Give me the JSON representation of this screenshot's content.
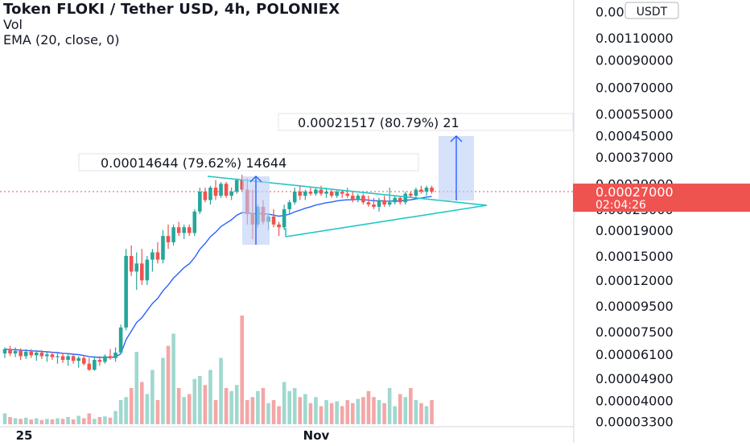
{
  "header": {
    "title": "Token FLOKI / Tether USD, 4h, POLONIEX",
    "indicator_vol": "Vol",
    "indicator_ema": "EMA (20, close, 0)"
  },
  "price_axis": {
    "currency": "USDT",
    "ticks": [
      "0.00170000",
      "0.00140000",
      "0.00110000",
      "0.00090000",
      "0.00070000",
      "0.00055000",
      "0.00045000",
      "0.00037000",
      "0.00029000",
      "0.00023000",
      "0.00019000",
      "0.00015000",
      "0.00012000",
      "0.00009500",
      "0.00007500",
      "0.00006100",
      "0.00004900",
      "0.00004000",
      "0.00003300"
    ],
    "last_price": "0.00027000",
    "countdown": "02:04:26"
  },
  "time_axis": {
    "labels": [
      "25",
      "Nov"
    ]
  },
  "annotations": {
    "measure_left": "0.00014644 (79.62%) 14644",
    "measure_right": "0.00021517 (80.79%) 21"
  },
  "colors": {
    "up": "#26a69a",
    "down": "#ef5350",
    "vol_up": "#9fd8cf",
    "vol_down": "#f4a6a6",
    "ema": "#2962ff",
    "pattern": "#1fc7c7",
    "measure_fill": "#bbcdf7",
    "measure_line": "#2962ff",
    "last_price_bg": "#ef5350"
  },
  "chart_data": {
    "type": "candlestick",
    "title": "Token FLOKI / Tether USD, 4h, POLONIEX",
    "y_scale": "log",
    "ylim": [
      3.15e-05,
      0.0017
    ],
    "candles": [
      [
        6.15e-05,
        6.5e-05,
        5.9e-05,
        6.4e-05
      ],
      [
        6.4e-05,
        6.6e-05,
        6e-05,
        6.15e-05
      ],
      [
        6.15e-05,
        6.5e-05,
        5.95e-05,
        6.3e-05
      ],
      [
        6.3e-05,
        6.45e-05,
        5.8e-05,
        6e-05
      ],
      [
        6e-05,
        6.4e-05,
        5.85e-05,
        6.25e-05
      ],
      [
        6.25e-05,
        6.4e-05,
        5.9e-05,
        6.05e-05
      ],
      [
        6.05e-05,
        6.3e-05,
        5.75e-05,
        6.2e-05
      ],
      [
        6.2e-05,
        6.35e-05,
        5.85e-05,
        6e-05
      ],
      [
        6e-05,
        6.25e-05,
        5.7e-05,
        6.1e-05
      ],
      [
        6.1e-05,
        6.25e-05,
        5.8e-05,
        5.95e-05
      ],
      [
        5.95e-05,
        6.2e-05,
        5.6e-05,
        6e-05
      ],
      [
        6e-05,
        6.2e-05,
        5.65e-05,
        5.8e-05
      ],
      [
        5.8e-05,
        6.1e-05,
        5.5e-05,
        6e-05
      ],
      [
        6e-05,
        6.15e-05,
        5.6e-05,
        5.75e-05
      ],
      [
        5.75e-05,
        6e-05,
        5.4e-05,
        5.9e-05
      ],
      [
        5.9e-05,
        6.05e-05,
        5.5e-05,
        5.6e-05
      ],
      [
        5.6e-05,
        5.9e-05,
        5.25e-05,
        5.3e-05
      ],
      [
        5.3e-05,
        6e-05,
        5.25e-05,
        5.8e-05
      ],
      [
        5.8e-05,
        6e-05,
        5.5e-05,
        5.7e-05
      ],
      [
        5.7e-05,
        6.1e-05,
        5.6e-05,
        6e-05
      ],
      [
        6e-05,
        6.4e-05,
        5.8e-05,
        5.9e-05
      ],
      [
        5.9e-05,
        6.5e-05,
        5.7e-05,
        6.2e-05
      ],
      [
        6.2e-05,
        8e-05,
        6.1e-05,
        7.8e-05
      ],
      [
        7.8e-05,
        0.00016,
        7.6e-05,
        0.00015
      ],
      [
        0.00015,
        0.000165,
        0.000125,
        0.00013
      ],
      [
        0.00013,
        0.000155,
        0.00011,
        0.00014
      ],
      [
        0.00014,
        0.00016,
        0.000115,
        0.00012
      ],
      [
        0.00012,
        0.00015,
        0.000115,
        0.000145
      ],
      [
        0.000145,
        0.00016,
        0.00013,
        0.000155
      ],
      [
        0.000155,
        0.00017,
        0.00014,
        0.000145
      ],
      [
        0.000145,
        0.00019,
        0.00014,
        0.00018
      ],
      [
        0.00018,
        0.0002,
        0.00016,
        0.00017
      ],
      [
        0.00017,
        0.0002,
        0.000165,
        0.000195
      ],
      [
        0.000195,
        0.000205,
        0.00018,
        0.000185
      ],
      [
        0.000185,
        0.0002,
        0.000175,
        0.000195
      ],
      [
        0.000195,
        0.0002,
        0.00018,
        0.000185
      ],
      [
        0.000185,
        0.00023,
        0.00018,
        0.000225
      ],
      [
        0.000225,
        0.00028,
        0.00022,
        0.00027
      ],
      [
        0.00027,
        0.00028,
        0.000245,
        0.00025
      ],
      [
        0.00025,
        0.000285,
        0.00024,
        0.00028
      ],
      [
        0.00028,
        0.0003,
        0.00025,
        0.00026
      ],
      [
        0.00026,
        0.000295,
        0.000255,
        0.00029
      ],
      [
        0.00029,
        0.000295,
        0.000255,
        0.00026
      ],
      [
        0.00026,
        0.00028,
        0.00025,
        0.00027
      ],
      [
        0.00027,
        0.000305,
        0.000265,
        0.0003
      ],
      [
        0.0003,
        0.000315,
        0.00027,
        0.000275
      ],
      [
        0.000275,
        0.000305,
        0.0002,
        0.00022
      ],
      [
        0.00022,
        0.000275,
        0.000175,
        0.0002
      ],
      [
        0.0002,
        0.00024,
        0.000195,
        0.000235
      ],
      [
        0.000235,
        0.00025,
        0.0002,
        0.000205
      ],
      [
        0.000205,
        0.00022,
        0.00019,
        0.000215
      ],
      [
        0.000215,
        0.00023,
        0.000195,
        0.0002
      ],
      [
        0.0002,
        0.000205,
        0.00018,
        0.000195
      ],
      [
        0.000195,
        0.00024,
        0.00019,
        0.00023
      ],
      [
        0.00023,
        0.00025,
        0.00022,
        0.000245
      ],
      [
        0.000245,
        0.00028,
        0.00024,
        0.00027
      ],
      [
        0.00027,
        0.000285,
        0.00025,
        0.00026
      ],
      [
        0.00026,
        0.000275,
        0.00025,
        0.00027
      ],
      [
        0.00027,
        0.00028,
        0.00026,
        0.000265
      ],
      [
        0.000265,
        0.00028,
        0.00026,
        0.000275
      ],
      [
        0.000275,
        0.000285,
        0.00026,
        0.000265
      ],
      [
        0.000265,
        0.00028,
        0.000255,
        0.00027
      ],
      [
        0.00027,
        0.000275,
        0.000255,
        0.00026
      ],
      [
        0.00026,
        0.000275,
        0.000255,
        0.00027
      ],
      [
        0.00027,
        0.000275,
        0.000255,
        0.000265
      ],
      [
        0.000265,
        0.00028,
        0.000255,
        0.00026
      ],
      [
        0.00026,
        0.00027,
        0.000245,
        0.00025
      ],
      [
        0.00025,
        0.000265,
        0.000245,
        0.00026
      ],
      [
        0.00026,
        0.000265,
        0.00024,
        0.000245
      ],
      [
        0.000245,
        0.00026,
        0.000235,
        0.00024
      ],
      [
        0.00024,
        0.000255,
        0.00023,
        0.000235
      ],
      [
        0.000235,
        0.000255,
        0.000225,
        0.00025
      ],
      [
        0.00025,
        0.00026,
        0.000235,
        0.00024
      ],
      [
        0.00024,
        0.00028,
        0.000235,
        0.000245
      ],
      [
        0.000245,
        0.00026,
        0.00024,
        0.000255
      ],
      [
        0.000255,
        0.00026,
        0.00024,
        0.000245
      ],
      [
        0.000245,
        0.00027,
        0.00024,
        0.000265
      ],
      [
        0.000265,
        0.00027,
        0.000255,
        0.00026
      ],
      [
        0.00026,
        0.00028,
        0.000255,
        0.000275
      ],
      [
        0.000275,
        0.000285,
        0.000265,
        0.00027
      ],
      [
        0.00027,
        0.000285,
        0.00026,
        0.00028
      ],
      [
        0.00028,
        0.000285,
        0.000265,
        0.00027
      ]
    ],
    "volume": [
      18,
      12,
      10,
      9,
      11,
      8,
      10,
      7,
      9,
      8,
      10,
      9,
      12,
      8,
      14,
      10,
      18,
      9,
      12,
      13,
      11,
      22,
      40,
      45,
      60,
      120,
      70,
      50,
      90,
      40,
      110,
      130,
      150,
      60,
      45,
      50,
      75,
      80,
      65,
      90,
      40,
      110,
      60,
      55,
      65,
      180,
      40,
      45,
      55,
      60,
      35,
      40,
      30,
      70,
      55,
      60,
      45,
      50,
      35,
      45,
      30,
      40,
      35,
      38,
      30,
      40,
      35,
      42,
      45,
      55,
      45,
      40,
      35,
      60,
      30,
      50,
      45,
      60,
      40,
      35,
      30,
      40
    ]
  }
}
